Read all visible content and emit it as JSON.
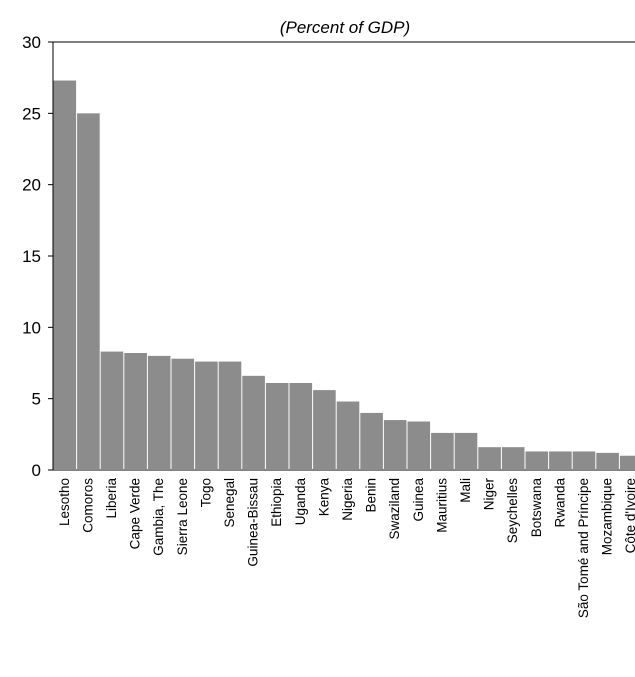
{
  "chart_data": {
    "type": "bar",
    "title": "(Percent of GDP)",
    "xlabel": "",
    "ylabel": "",
    "ylim": [
      0,
      30
    ],
    "yticks": [
      "0",
      "5",
      "10",
      "15",
      "20",
      "25",
      "30"
    ],
    "grid": false,
    "bar_color": "#8c8c8c",
    "categories": [
      "Lesotho",
      "Comoros",
      "Liberia",
      "Cape Verde",
      "Gambia, The",
      "Sierra Leone",
      "Togo",
      "Senegal",
      "Guinea-Bissau",
      "Ethiopia",
      "Uganda",
      "Kenya",
      "Nigeria",
      "Benin",
      "Swaziland",
      "Guinea",
      "Mauritius",
      "Mali",
      "Niger",
      "Seychelles",
      "Botswana",
      "Rwanda",
      "São Tomé and Príncipe",
      "Mozambique",
      "Côte d'Ivoire"
    ],
    "values": [
      27.3,
      25.0,
      8.3,
      8.2,
      8.0,
      7.8,
      7.6,
      7.6,
      6.6,
      6.1,
      6.1,
      5.6,
      4.8,
      4.0,
      3.5,
      3.4,
      2.6,
      2.6,
      1.6,
      1.6,
      1.3,
      1.3,
      1.3,
      1.2,
      1.0
    ]
  }
}
